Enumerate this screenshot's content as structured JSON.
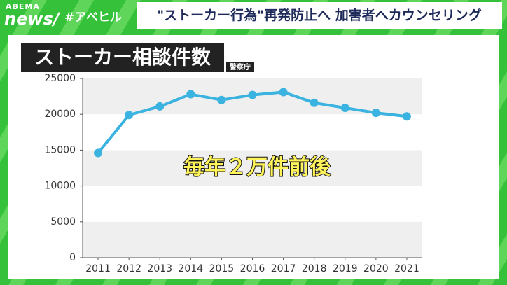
{
  "header": {
    "logo_top": "ABEMA",
    "logo_bottom": "news/",
    "tag": "#アベヒル",
    "headline": "\"ストーカー行為\"再発防止へ 加害者へカウンセリング"
  },
  "chart_data": {
    "type": "line",
    "title": "ストーカー相談件数",
    "source": "警察庁",
    "annotation": "毎年２万件前後",
    "categories": [
      "2011",
      "2012",
      "2013",
      "2014",
      "2015",
      "2016",
      "2017",
      "2018",
      "2019",
      "2020",
      "2021"
    ],
    "values": [
      14600,
      19900,
      21100,
      22800,
      22000,
      22700,
      23100,
      21600,
      20900,
      20200,
      19700
    ],
    "color": "#3bb3e0",
    "ylim": [
      0,
      25000
    ],
    "yticks": [
      0,
      5000,
      10000,
      15000,
      20000,
      25000
    ],
    "bands": true
  }
}
